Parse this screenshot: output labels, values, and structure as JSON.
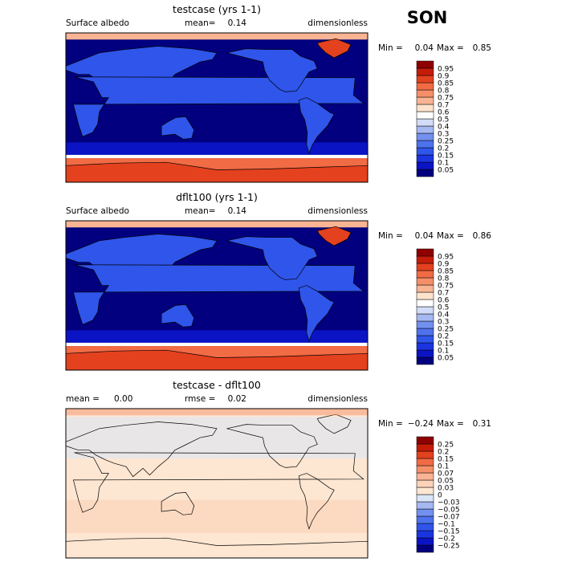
{
  "season": "SON",
  "chart_data": [
    {
      "type": "heatmap",
      "title": "testcase (yrs 1-1)",
      "left_label": "Surface albedo",
      "mean_label": "mean=",
      "mean_value": "0.14",
      "units": "dimensionless",
      "min_label": "Min =",
      "min_value": "0.04",
      "max_label": "Max =",
      "max_value": "0.85",
      "levels": [
        "0.05",
        "0.1",
        "0.15",
        "0.2",
        "0.25",
        "0.3",
        "0.4",
        "0.5",
        "0.6",
        "0.7",
        "0.75",
        "0.8",
        "0.85",
        "0.9",
        "0.95"
      ],
      "colors": [
        "#02007f",
        "#0a14c4",
        "#1a34e0",
        "#2f55ea",
        "#4d72ec",
        "#7290ef",
        "#a6b8f2",
        "#d2dcf6",
        "#ffffff",
        "#fde3cc",
        "#f9b493",
        "#f58f69",
        "#f16b45",
        "#e4411f",
        "#c51c0a",
        "#8f0000"
      ]
    },
    {
      "type": "heatmap",
      "title": "dflt100 (yrs 1-1)",
      "left_label": "Surface albedo",
      "mean_label": "mean=",
      "mean_value": "0.14",
      "units": "dimensionless",
      "min_label": "Min =",
      "min_value": "0.04",
      "max_label": "Max =",
      "max_value": "0.86",
      "levels": [
        "0.05",
        "0.1",
        "0.15",
        "0.2",
        "0.25",
        "0.3",
        "0.4",
        "0.5",
        "0.6",
        "0.7",
        "0.75",
        "0.8",
        "0.85",
        "0.9",
        "0.95"
      ],
      "colors": [
        "#02007f",
        "#0a14c4",
        "#1a34e0",
        "#2f55ea",
        "#4d72ec",
        "#7290ef",
        "#a6b8f2",
        "#d2dcf6",
        "#ffffff",
        "#fde3cc",
        "#f9b493",
        "#f58f69",
        "#f16b45",
        "#e4411f",
        "#c51c0a",
        "#8f0000"
      ]
    },
    {
      "type": "heatmap",
      "title": "testcase - dflt100",
      "left_label": "mean =",
      "left_value": "0.00",
      "mean_label": "rmse =",
      "mean_value": "0.02",
      "units": "dimensionless",
      "min_label": "Min =",
      "min_value": "−0.24",
      "max_label": "Max =",
      "max_value": "0.31",
      "levels": [
        "−0.25",
        "−0.2",
        "−0.15",
        "−0.1",
        "−0.07",
        "−0.05",
        "−0.03",
        "0",
        "0.03",
        "0.05",
        "0.07",
        "0.1",
        "0.15",
        "0.2",
        "0.25"
      ],
      "colors": [
        "#02007f",
        "#0a14c4",
        "#1a34e0",
        "#2f55ea",
        "#4d72ec",
        "#7290ef",
        "#a6b8f2",
        "#d8e6f8",
        "#fde6d2",
        "#fcd2b8",
        "#f9b493",
        "#f58f69",
        "#f16b45",
        "#e4411f",
        "#c51c0a",
        "#8f0000"
      ]
    }
  ]
}
